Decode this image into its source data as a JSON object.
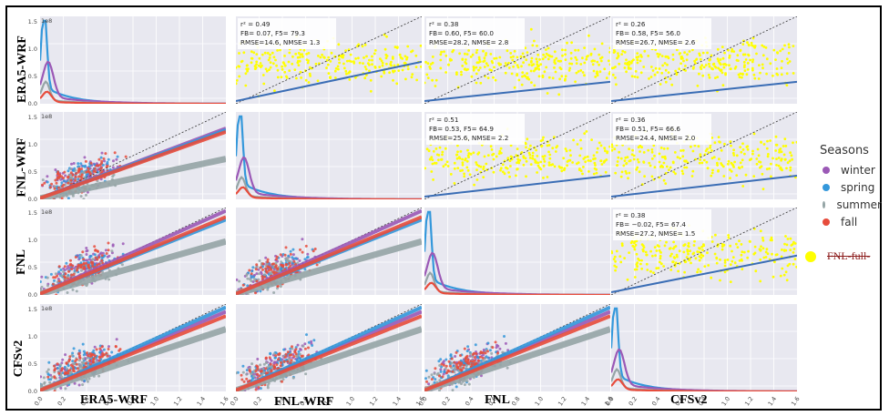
{
  "chart_data": {
    "type": "scatter",
    "variables": [
      "ERA5-WRF",
      "FNL-WRF",
      "FNL",
      "CFSv2"
    ],
    "row_labels": [
      "ERA5-WRF",
      "FNL-WRF",
      "FNL",
      "CFSv2"
    ],
    "col_labels": [
      "ERA5-WRF",
      "FNL-WRF",
      "FNL",
      "CFSv2"
    ],
    "diagonal": "kde",
    "axis_scale_label": "1e8",
    "x_ticks": [
      "0.0",
      "0.2",
      "0.4",
      "0.6",
      "0.8",
      "1.0",
      "1.2",
      "1.4",
      "1.6"
    ],
    "y_ticks": [
      "0.0",
      "0.5",
      "1.0",
      "1.5"
    ],
    "xlim": [
      0,
      1.6
    ],
    "ylim": [
      0,
      1.6
    ],
    "legend": {
      "title": "Seasons",
      "entries": [
        {
          "name": "winter",
          "color": "#9b59b6"
        },
        {
          "name": "spring",
          "color": "#3498db"
        },
        {
          "name": "summer",
          "color": "#95a5a6"
        },
        {
          "name": "fall",
          "color": "#e74c3c"
        }
      ],
      "full_label": "FNL-full-",
      "full_color": "#ffff00"
    },
    "stats": [
      {
        "row": 0,
        "col": 1,
        "lines": [
          "r² = 0.49",
          "FB= 0.07, F5= 79.3",
          "RMSE=14.6, NMSE= 1.3"
        ],
        "slope": 0.45
      },
      {
        "row": 0,
        "col": 2,
        "lines": [
          "r² = 0.38",
          "FB= 0.60, F5= 60.0",
          "RMSE=28.2, NMSE= 2.8"
        ],
        "slope": 0.22
      },
      {
        "row": 0,
        "col": 3,
        "lines": [
          "r² = 0.26",
          "FB= 0.58, F5= 56.0",
          "RMSE=26.7, NMSE= 2.6"
        ],
        "slope": 0.22
      },
      {
        "row": 1,
        "col": 2,
        "lines": [
          "r² = 0.51",
          "FB= 0.53, F5= 64.9",
          "RMSE=25.6, NMSE= 2.2"
        ],
        "slope": 0.24
      },
      {
        "row": 1,
        "col": 3,
        "lines": [
          "r² = 0.36",
          "FB= 0.51, F5= 66.6",
          "RMSE=24.4, NMSE= 2.0"
        ],
        "slope": 0.24
      },
      {
        "row": 2,
        "col": 3,
        "lines": [
          "r² = 0.38",
          "FB= −0.02, F5= 67.4",
          "RMSE=27.2, NMSE= 1.5"
        ],
        "slope": 0.42
      }
    ],
    "season_slopes": {
      "row1": {
        "winter": 0.8,
        "spring": 0.78,
        "summer": 0.45,
        "fall": 0.76
      },
      "row2": {
        "winter": 0.95,
        "spring": 0.85,
        "summer": 0.6,
        "fall": 0.88
      },
      "row3": {
        "winter": 0.9,
        "spring": 0.95,
        "summer": 0.7,
        "fall": 0.85
      }
    },
    "grid": true
  }
}
